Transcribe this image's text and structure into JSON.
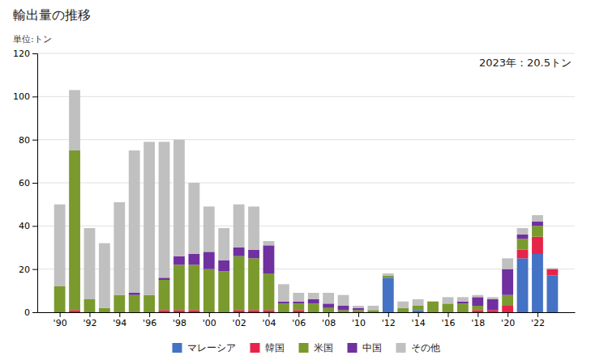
{
  "chart_data": {
    "type": "bar",
    "title": "輸出量の推移",
    "ylabel": "単位:トン",
    "annotations": [
      "2023年：20.5トン"
    ],
    "stacked": true,
    "grid": true,
    "legend": "bottom",
    "x": [
      1990,
      1991,
      1992,
      1993,
      1994,
      1995,
      1996,
      1997,
      1998,
      1999,
      2000,
      2001,
      2002,
      2003,
      2004,
      2005,
      2006,
      2007,
      2008,
      2009,
      2010,
      2011,
      2012,
      2013,
      2014,
      2015,
      2016,
      2017,
      2018,
      2019,
      2020,
      2021,
      2022,
      2023
    ],
    "series": [
      {
        "name": "マレーシア",
        "color": "#4472c4",
        "values": [
          0,
          0,
          0,
          0,
          0,
          0,
          0,
          0,
          0,
          0,
          0,
          0,
          0,
          0,
          0,
          0,
          0,
          0,
          0,
          0,
          0,
          0,
          16,
          0,
          1,
          0,
          0,
          0,
          0,
          0,
          0,
          25,
          27,
          17
        ]
      },
      {
        "name": "韓国",
        "color": "#e8234a",
        "values": [
          0,
          1,
          0,
          0,
          0,
          0,
          0,
          1,
          1,
          1,
          0,
          0,
          1,
          1,
          1,
          0,
          1,
          0,
          0,
          0,
          0,
          0,
          0,
          0,
          0,
          0,
          0,
          0,
          1,
          1,
          3,
          4,
          8,
          3
        ]
      },
      {
        "name": "米国",
        "color": "#7a9a2e",
        "values": [
          12,
          74,
          6,
          2,
          8,
          8,
          8,
          14,
          21,
          21,
          20,
          19,
          25,
          24,
          17,
          4,
          3,
          4,
          2,
          1,
          1,
          1,
          1,
          2,
          2,
          5,
          4,
          4,
          2,
          0,
          5,
          5,
          5,
          0
        ]
      },
      {
        "name": "中国",
        "color": "#7030a0",
        "values": [
          0,
          0,
          0,
          0,
          0,
          1,
          0,
          1,
          4,
          5,
          8,
          5,
          4,
          4,
          13,
          1,
          1,
          2,
          2,
          2,
          1,
          0,
          0,
          0,
          0,
          0,
          0,
          1,
          4,
          5,
          12,
          2,
          2,
          0
        ]
      },
      {
        "name": "その他",
        "color": "#c0c0c0",
        "values": [
          38,
          28,
          33,
          30,
          43,
          66,
          71,
          63,
          54,
          33,
          21,
          15,
          20,
          20,
          2,
          8,
          4,
          3,
          5,
          5,
          1,
          2,
          1,
          3,
          3,
          0,
          3,
          2,
          1,
          1,
          5,
          3,
          3,
          0.5
        ]
      }
    ],
    "xlim": [
      1988.5,
      2024.5
    ],
    "xticks": [
      {
        "value": 1990,
        "label": "'90"
      },
      {
        "value": 1992,
        "label": "'92"
      },
      {
        "value": 1994,
        "label": "'94"
      },
      {
        "value": 1996,
        "label": "'96"
      },
      {
        "value": 1998,
        "label": "'98"
      },
      {
        "value": 2000,
        "label": "'00"
      },
      {
        "value": 2002,
        "label": "'02"
      },
      {
        "value": 2004,
        "label": "'04"
      },
      {
        "value": 2006,
        "label": "'06"
      },
      {
        "value": 2008,
        "label": "'08"
      },
      {
        "value": 2010,
        "label": "'10"
      },
      {
        "value": 2012,
        "label": "'12"
      },
      {
        "value": 2014,
        "label": "'14"
      },
      {
        "value": 2016,
        "label": "'16"
      },
      {
        "value": 2018,
        "label": "'18"
      },
      {
        "value": 2020,
        "label": "'20"
      },
      {
        "value": 2022,
        "label": "'22"
      }
    ],
    "ylim": [
      0,
      120
    ],
    "yticks": [
      0,
      20,
      40,
      60,
      80,
      100,
      120
    ]
  }
}
